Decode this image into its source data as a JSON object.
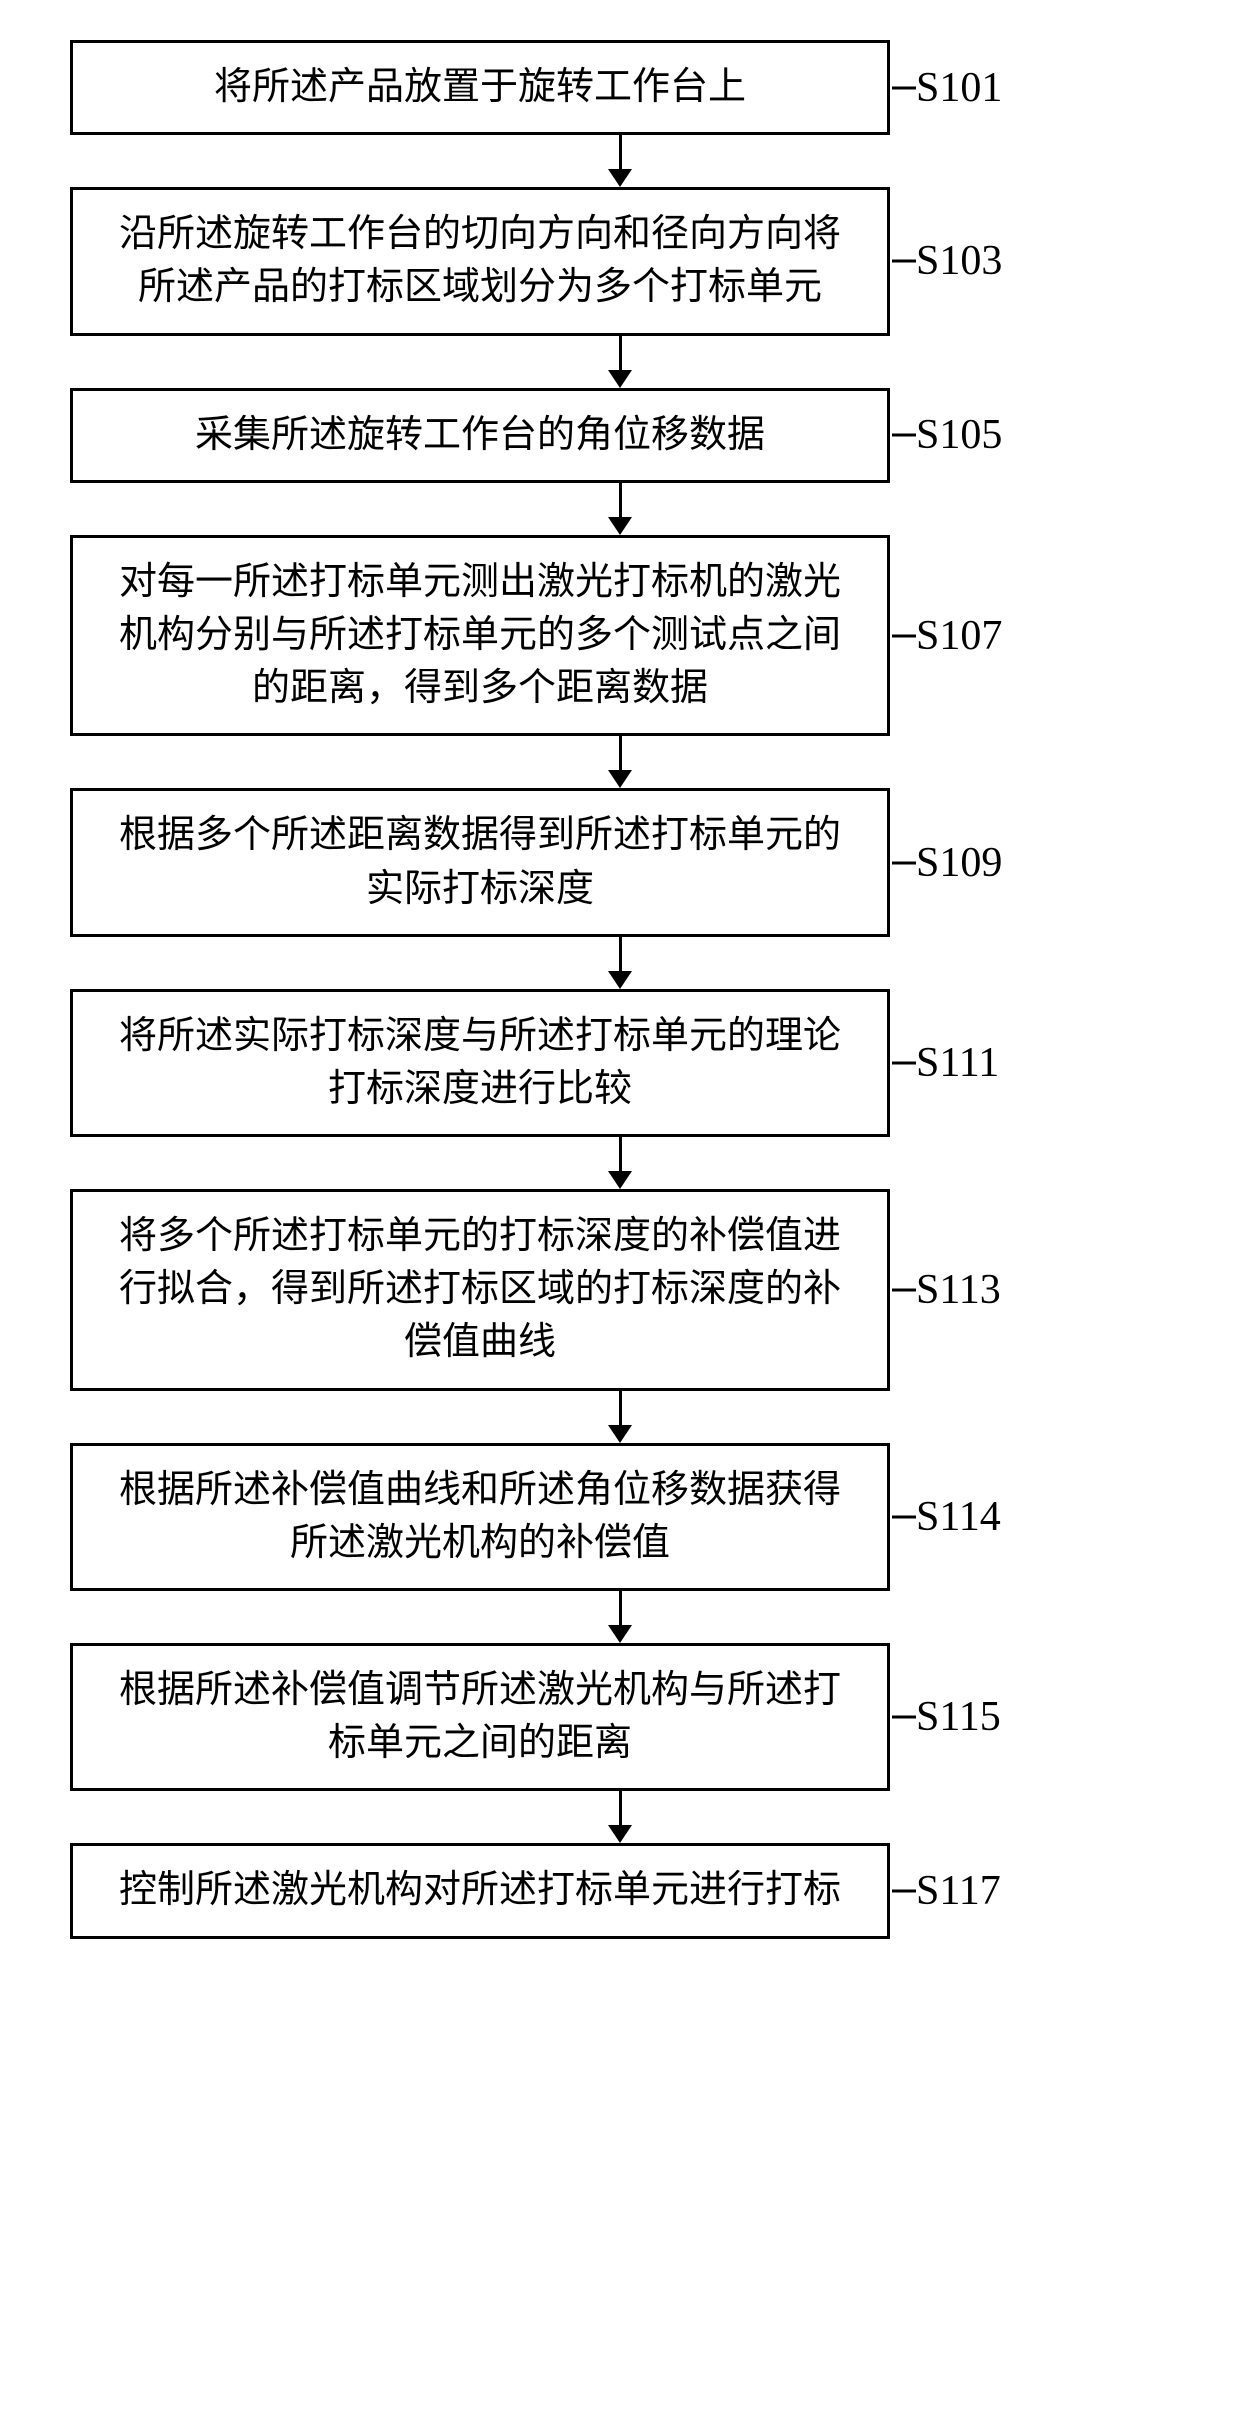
{
  "flow": {
    "type": "flowchart",
    "direction": "vertical",
    "box_border_color": "#000000",
    "box_border_width": 3,
    "box_background": "#ffffff",
    "text_color": "#000000",
    "font_family": "SimSun",
    "box_font_size": 38,
    "label_font_size": 42,
    "arrow_color": "#000000",
    "arrow_line_width": 3,
    "connector_tick_length": 24,
    "steps": [
      {
        "label": "S101",
        "text": "将所述产品放置于旋转工作台上"
      },
      {
        "label": "S103",
        "text": "沿所述旋转工作台的切向方向和径向方向将所述产品的打标区域划分为多个打标单元"
      },
      {
        "label": "S105",
        "text": "采集所述旋转工作台的角位移数据"
      },
      {
        "label": "S107",
        "text": "对每一所述打标单元测出激光打标机的激光机构分别与所述打标单元的多个测试点之间的距离，得到多个距离数据"
      },
      {
        "label": "S109",
        "text": "根据多个所述距离数据得到所述打标单元的实际打标深度"
      },
      {
        "label": "S111",
        "text": "将所述实际打标深度与所述打标单元的理论打标深度进行比较"
      },
      {
        "label": "S113",
        "text": "将多个所述打标单元的打标深度的补偿值进行拟合，得到所述打标区域的打标深度的补偿值曲线"
      },
      {
        "label": "S114",
        "text": "根据所述补偿值曲线和所述角位移数据获得所述激光机构的补偿值"
      },
      {
        "label": "S115",
        "text": "根据所述补偿值调节所述激光机构与所述打标单元之间的距离"
      },
      {
        "label": "S117",
        "text": "控制所述激光机构对所述打标单元进行打标"
      }
    ]
  }
}
